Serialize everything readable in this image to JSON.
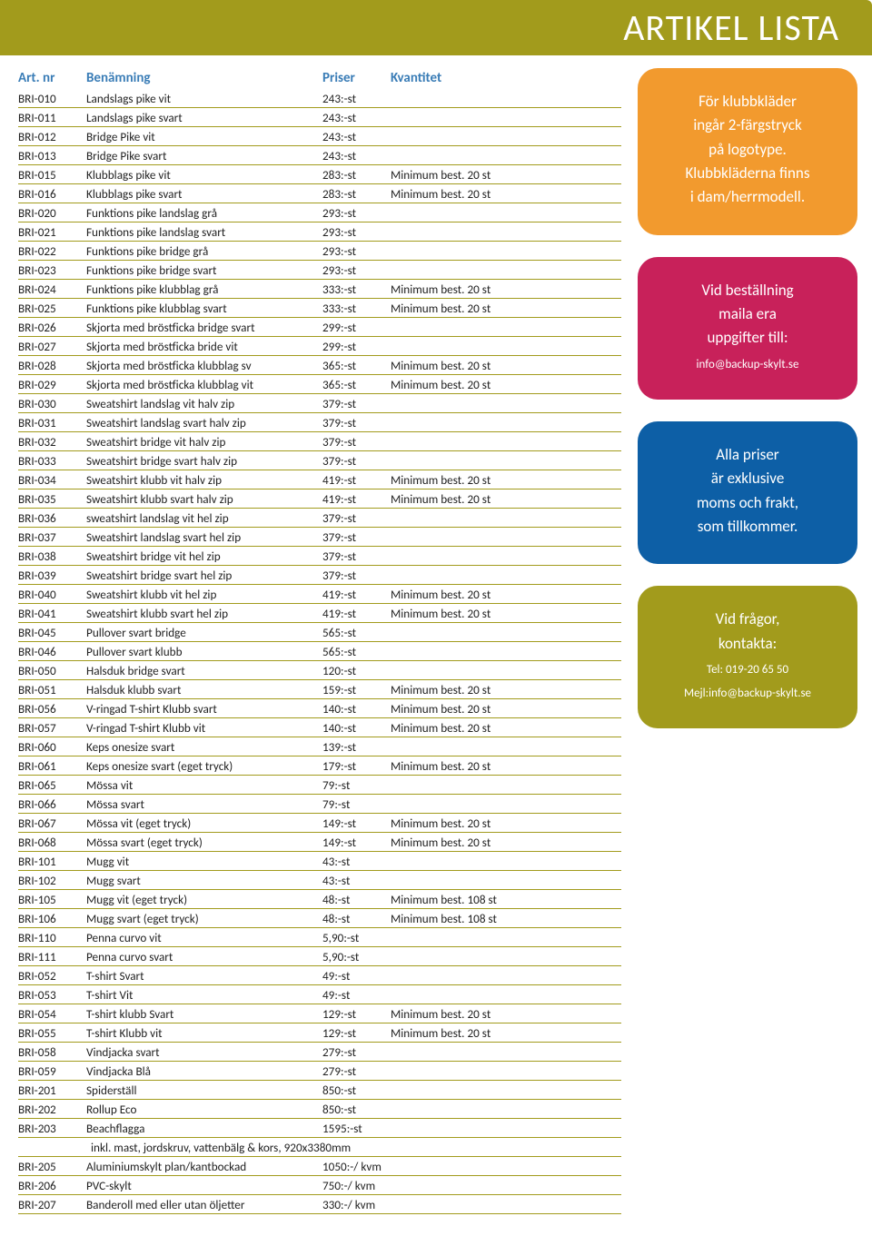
{
  "header": {
    "title": "ARTIKEL LISTA"
  },
  "table": {
    "headers": {
      "art": "Art. nr",
      "ben": "Benämning",
      "pri": "Priser",
      "kva": "Kvantitet"
    },
    "rows": [
      [
        "BRI-010",
        "Landslags pike vit",
        "243:-st",
        ""
      ],
      [
        "BRI-011",
        "Landslags pike svart",
        "243:-st",
        ""
      ],
      [
        "BRI-012",
        "Bridge Pike vit",
        "243:-st",
        ""
      ],
      [
        "BRI-013",
        "Bridge Pike svart",
        "243:-st",
        ""
      ],
      [
        "BRI-015",
        "Klubblags pike vit",
        "283:-st",
        "Minimum best. 20 st"
      ],
      [
        "BRI-016",
        "Klubblags pike svart",
        "283:-st",
        "Minimum best. 20 st"
      ],
      [
        "BRI-020",
        "Funktions pike landslag grå",
        "293:-st",
        ""
      ],
      [
        "BRI-021",
        "Funktions pike landslag svart",
        "293:-st",
        ""
      ],
      [
        "BRI-022",
        "Funktions pike bridge grå",
        "293:-st",
        ""
      ],
      [
        "BRI-023",
        "Funktions pike bridge svart",
        "293:-st",
        ""
      ],
      [
        "BRI-024",
        "Funktions pike klubblag grå",
        "333:-st",
        "Minimum best. 20 st"
      ],
      [
        "BRI-025",
        "Funktions pike klubblag svart",
        "333:-st",
        "Minimum best. 20 st"
      ],
      [
        "BRI-026",
        "Skjorta med bröstficka bridge svart",
        "299:-st",
        ""
      ],
      [
        "BRI-027",
        "Skjorta med bröstficka bride vit",
        "299:-st",
        ""
      ],
      [
        "BRI-028",
        "Skjorta med bröstficka klubblag sv",
        "365:-st",
        "Minimum best. 20 st"
      ],
      [
        "BRI-029",
        "Skjorta med bröstficka klubblag vit",
        "365:-st",
        "Minimum best. 20 st"
      ],
      [
        "BRI-030",
        "Sweatshirt landslag vit halv zip",
        "379:-st",
        ""
      ],
      [
        "BRI-031",
        "Sweatshirt landslag svart halv zip",
        "379:-st",
        ""
      ],
      [
        "BRI-032",
        "Sweatshirt bridge vit halv zip",
        "379:-st",
        ""
      ],
      [
        "BRI-033",
        "Sweatshirt bridge svart halv zip",
        "379:-st",
        ""
      ],
      [
        "BRI-034",
        "Sweatshirt klubb vit halv zip",
        "419:-st",
        "Minimum best. 20 st"
      ],
      [
        "BRI-035",
        "Sweatshirt klubb svart halv zip",
        "419:-st",
        "Minimum best. 20 st"
      ],
      [
        "BRI-036",
        "sweatshirt landslag vit hel zip",
        "379:-st",
        ""
      ],
      [
        "BRI-037",
        "Sweatshirt landslag svart hel zip",
        "379:-st",
        ""
      ],
      [
        "BRI-038",
        "Sweatshirt bridge vit hel zip",
        "379:-st",
        ""
      ],
      [
        "BRI-039",
        "Sweatshirt bridge svart hel zip",
        "379:-st",
        ""
      ],
      [
        "BRI-040",
        "Sweatshirt klubb vit hel zip",
        "419:-st",
        "Minimum best. 20 st"
      ],
      [
        "BRI-041",
        "Sweatshirt klubb svart hel zip",
        "419:-st",
        "Minimum best. 20 st"
      ],
      [
        "BRI-045",
        "Pullover svart bridge",
        "565:-st",
        ""
      ],
      [
        "BRI-046",
        "Pullover svart klubb",
        "565:-st",
        ""
      ],
      [
        "BRI-050",
        "Halsduk bridge svart",
        "120:-st",
        ""
      ],
      [
        "BRI-051",
        "Halsduk klubb svart",
        "159:-st",
        "Minimum best. 20 st"
      ],
      [
        "BRI-056",
        "V-ringad T-shirt Klubb svart",
        "140:-st",
        "Minimum best. 20 st"
      ],
      [
        "BRI-057",
        "V-ringad T-shirt Klubb vit",
        "140:-st",
        "Minimum best. 20 st"
      ],
      [
        "BRI-060",
        "Keps onesize svart",
        "139:-st",
        ""
      ],
      [
        "BRI-061",
        "Keps onesize svart (eget tryck)",
        "179:-st",
        "Minimum best. 20 st"
      ],
      [
        "BRI-065",
        "Mössa vit",
        "79:-st",
        ""
      ],
      [
        "BRI-066",
        "Mössa svart",
        "79:-st",
        ""
      ],
      [
        "BRI-067",
        "Mössa vit (eget tryck)",
        "149:-st",
        "Minimum best. 20 st"
      ],
      [
        "BRI-068",
        "Mössa svart (eget tryck)",
        "149:-st",
        "Minimum best. 20 st"
      ],
      [
        "BRI-101",
        "Mugg vit",
        "43:-st",
        ""
      ],
      [
        "BRI-102",
        "Mugg svart",
        "43:-st",
        ""
      ],
      [
        "BRI-105",
        "Mugg vit (eget tryck)",
        "48:-st",
        "Minimum best. 108 st"
      ],
      [
        "BRI-106",
        "Mugg svart (eget tryck)",
        "48:-st",
        "Minimum best. 108 st"
      ],
      [
        "BRI-110",
        "Penna curvo vit",
        "5,90:-st",
        ""
      ],
      [
        "BRI-111",
        "Penna curvo svart",
        "5,90:-st",
        ""
      ],
      [
        "BRI-052",
        "T-shirt Svart",
        "49:-st",
        ""
      ],
      [
        "BRI-053",
        "T-shirt Vit",
        "49:-st",
        ""
      ],
      [
        "BRI-054",
        "T-shirt klubb Svart",
        "129:-st",
        "Minimum best. 20 st"
      ],
      [
        "BRI-055",
        "T-shirt Klubb vit",
        "129:-st",
        "Minimum best. 20 st"
      ],
      [
        "BRI-058",
        "Vindjacka svart",
        "279:-st",
        ""
      ],
      [
        "BRI-059",
        "Vindjacka Blå",
        "279:-st",
        ""
      ],
      [
        "BRI-201",
        "Spiderställ",
        "850:-st",
        ""
      ],
      [
        "BRI-202",
        "Rollup Eco",
        "850:-st",
        ""
      ],
      [
        "BRI-203",
        "Beachflagga",
        "1595:-st",
        ""
      ],
      [
        "",
        "inkl. mast, jordskruv, vattenbälg & kors, 920x3380mm",
        "",
        ""
      ],
      [
        "BRI-205",
        "Aluminiumskylt plan/kantbockad",
        "1050:-/ kvm",
        ""
      ],
      [
        "BRI-206",
        "PVC-skylt",
        "750:-/ kvm",
        ""
      ],
      [
        "BRI-207",
        "Banderoll med eller utan öljetter",
        "330:-/ kvm",
        ""
      ]
    ]
  },
  "bubbles": {
    "orange": {
      "lines": [
        "För klubbkläder",
        "ingår 2-färgstryck",
        "på logotype.",
        "Klubbkläderna finns",
        "i dam/herrmodell."
      ]
    },
    "pink": {
      "lines": [
        "Vid beställning",
        "maila era",
        "uppgifter till:"
      ],
      "small": "info@backup-skylt.se"
    },
    "blue": {
      "lines": [
        "Alla priser",
        "är exklusive",
        "moms och frakt,",
        "som tillkommer."
      ]
    },
    "olive": {
      "lines": [
        "Vid frågor,",
        "kontakta:"
      ],
      "small1": "Tel: 019-20 65 50",
      "small2": "Mejl:info@backup-skylt.se"
    }
  },
  "colors": {
    "header_bg": "#a29b1c",
    "th_color": "#397cb6",
    "border": "#a29b1c",
    "orange": "#f29a2e",
    "pink": "#c8215a",
    "blue": "#0d5fa6",
    "olive": "#a29b1c"
  }
}
